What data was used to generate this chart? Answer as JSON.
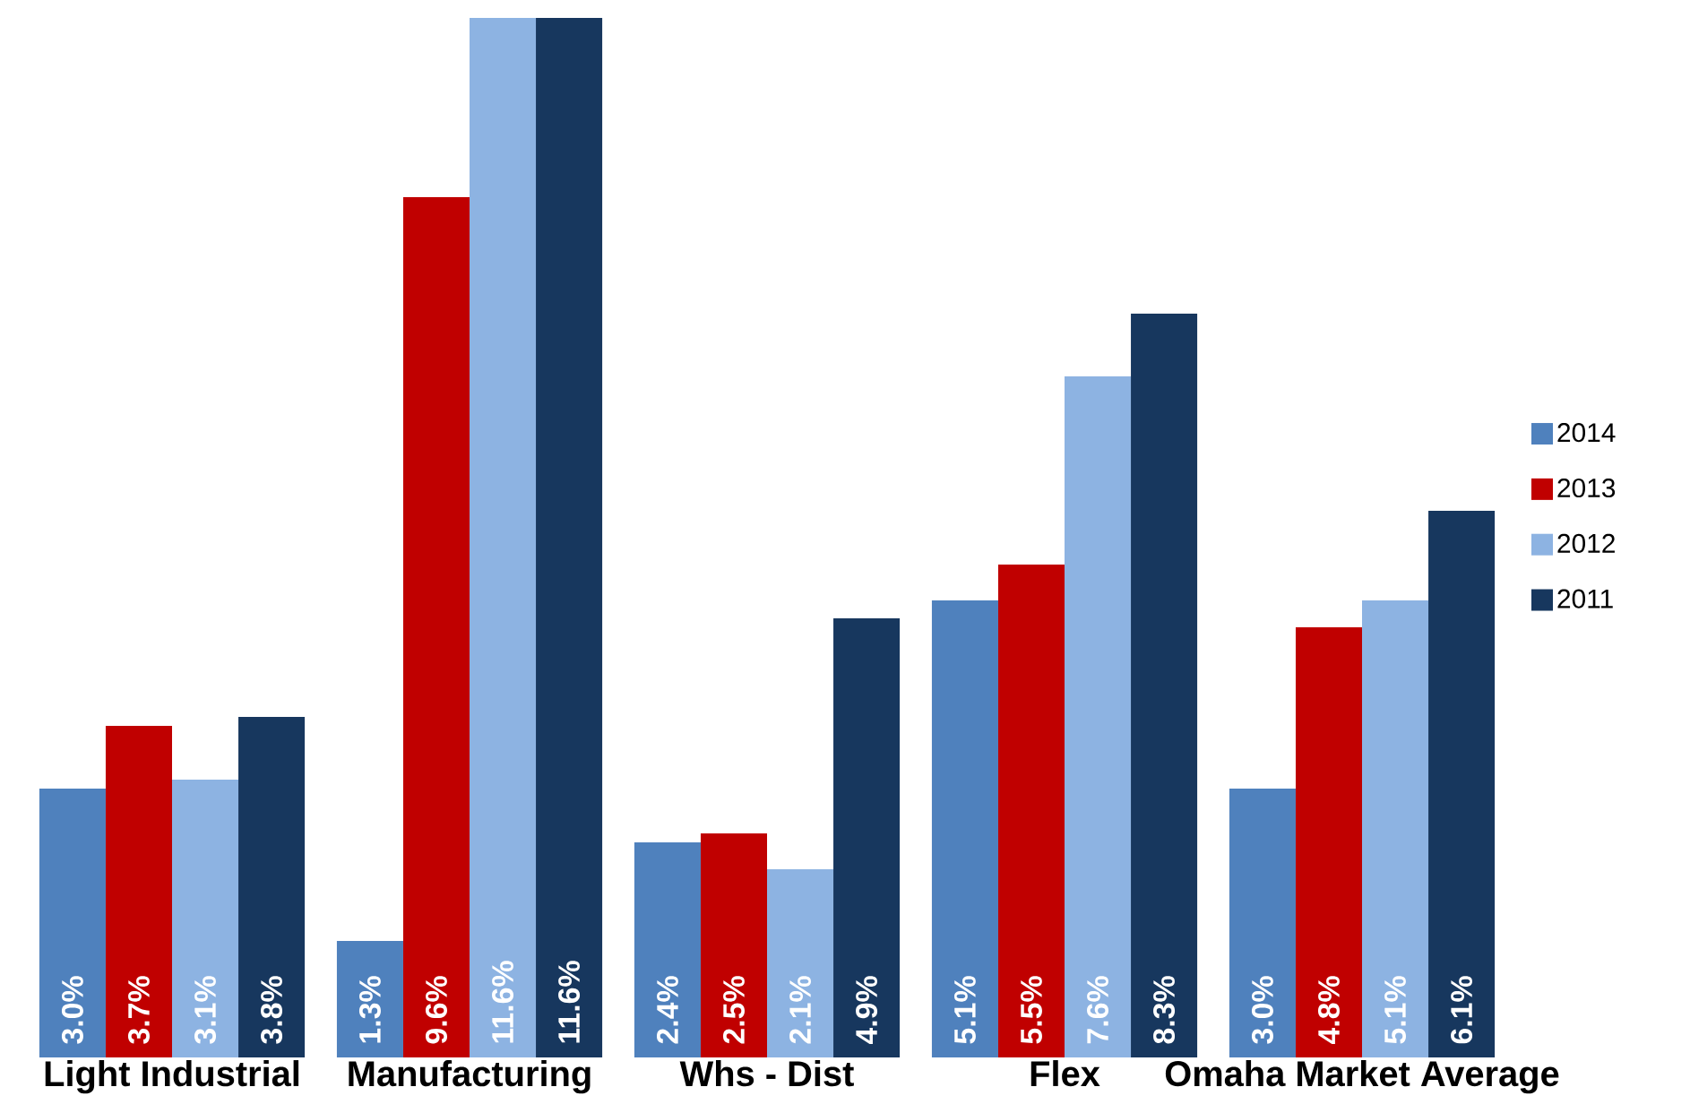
{
  "chart_data": {
    "type": "bar",
    "categories": [
      "Light Industrial",
      "Manufacturing",
      "Whs - Dist",
      "Flex",
      "Omaha Market Average"
    ],
    "series": [
      {
        "name": "2014",
        "color": "#4f81bd",
        "values": [
          3.0,
          1.3,
          2.4,
          5.1,
          3.0
        ],
        "value_labels": [
          "3.0%",
          "1.3%",
          "2.4%",
          "5.1%",
          "3.0%"
        ]
      },
      {
        "name": "2013",
        "color": "#c00000",
        "values": [
          3.7,
          9.6,
          2.5,
          5.5,
          4.8
        ],
        "value_labels": [
          "3.7%",
          "9.6%",
          "2.5%",
          "5.5%",
          "4.8%"
        ]
      },
      {
        "name": "2012",
        "color": "#8db3e2",
        "values": [
          3.1,
          11.6,
          2.1,
          7.6,
          5.1
        ],
        "value_labels": [
          "3.1%",
          "11.6%",
          "2.1%",
          "7.6%",
          "5.1%"
        ]
      },
      {
        "name": "2011",
        "color": "#17375e",
        "values": [
          3.8,
          11.6,
          4.9,
          8.3,
          6.1
        ],
        "value_labels": [
          "3.8%",
          "11.6%",
          "4.9%",
          "8.3%",
          "6.1%"
        ]
      }
    ],
    "ylim": [
      0,
      11.6
    ],
    "legend": "right"
  }
}
